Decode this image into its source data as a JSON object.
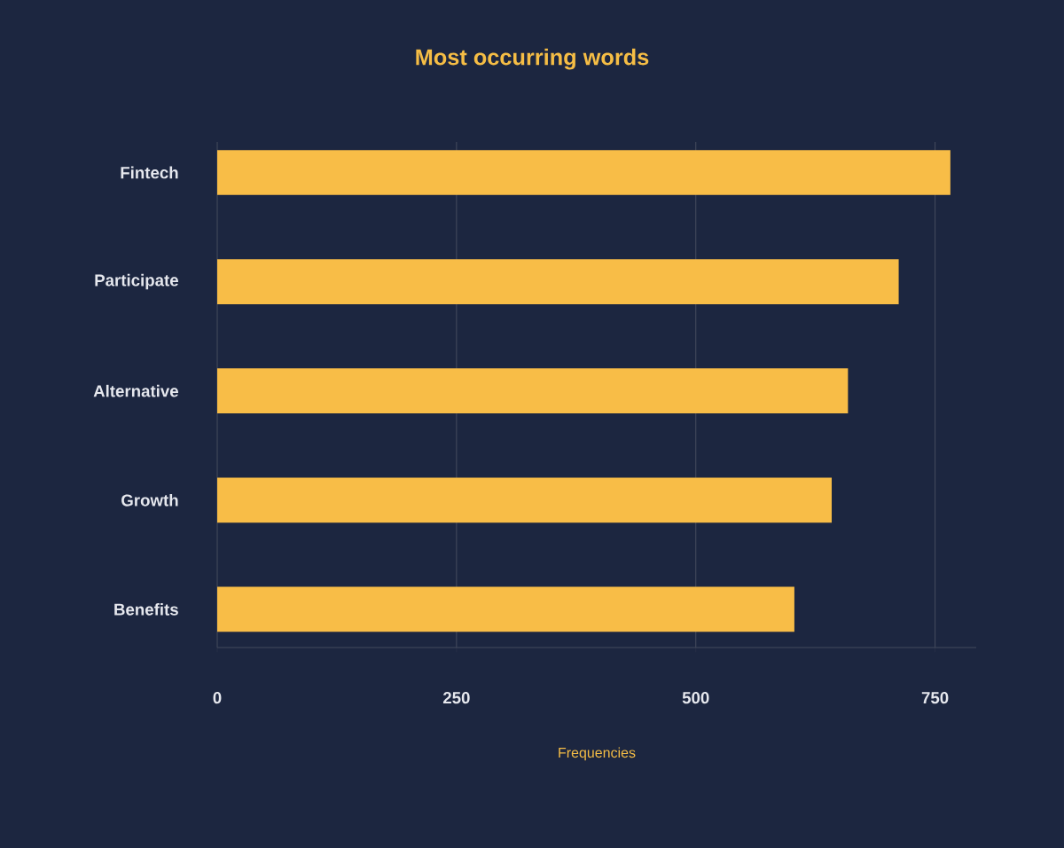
{
  "chart_data": {
    "type": "bar",
    "orientation": "horizontal",
    "title": "Most occurring words",
    "xlabel": "Frequencies",
    "categories": [
      "Fintech",
      "Participate",
      "Alternative",
      "Growth",
      "Benefits"
    ],
    "values": [
      766,
      712,
      659,
      642,
      603
    ],
    "color": "#f8bd47",
    "xlim": [
      0,
      793
    ],
    "xticks": [
      0,
      250,
      500,
      750
    ],
    "grid": "x"
  }
}
